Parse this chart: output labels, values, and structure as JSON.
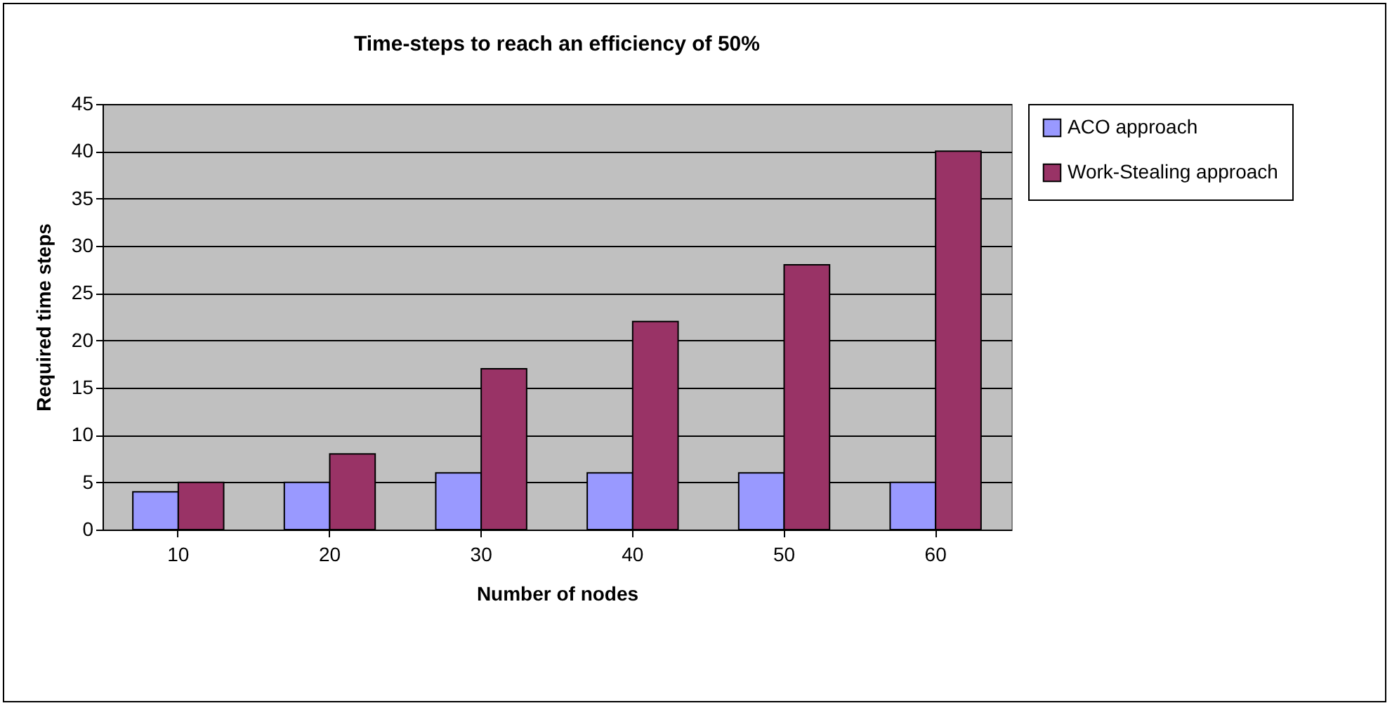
{
  "chart_data": {
    "type": "bar",
    "title": "Time-steps to reach an efficiency of 50%",
    "xlabel": "Number of nodes",
    "ylabel": "Required time steps",
    "categories": [
      "10",
      "20",
      "30",
      "40",
      "50",
      "60"
    ],
    "series": [
      {
        "name": "ACO approach",
        "color": "#9999ff",
        "values": [
          4,
          5,
          6,
          6,
          6,
          5
        ]
      },
      {
        "name": "Work-Stealing approach",
        "color": "#993366",
        "values": [
          5,
          8,
          17,
          22,
          28,
          40
        ]
      }
    ],
    "ylim": [
      0,
      45
    ],
    "yticks": [
      0,
      5,
      10,
      15,
      20,
      25,
      30,
      35,
      40,
      45
    ],
    "grid": "y",
    "legend": "right"
  }
}
